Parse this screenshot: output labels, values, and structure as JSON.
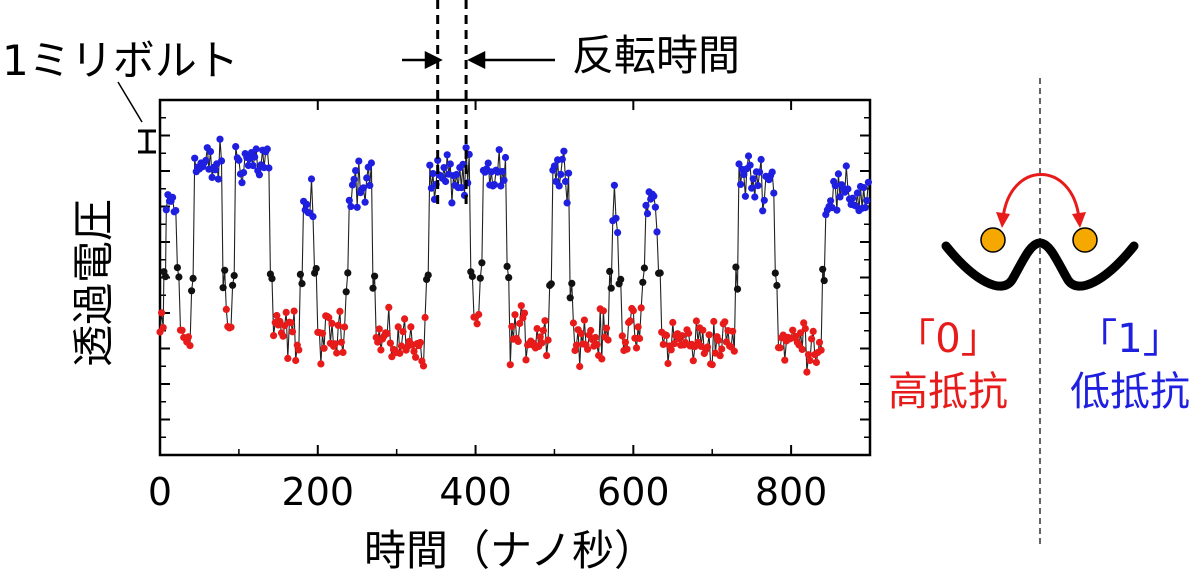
{
  "chart_data": {
    "type": "scatter",
    "xlabel": "時間（ナノ秒）",
    "ylabel": "透過電圧",
    "xlim": [
      0,
      900
    ],
    "ylim": [
      0,
      10
    ],
    "xticks": [
      0,
      200,
      400,
      600,
      800
    ],
    "xtick_labels": [
      "0",
      "200",
      "400",
      "600",
      "800"
    ],
    "y_tick_labels_shown": false,
    "grid": false,
    "scale_bar_label": "1ミリボルト",
    "reversal_label": "反転時間",
    "reversal_window": [
      352,
      388
    ],
    "state_colors": {
      "high": "#1f1fe0",
      "mid": "#111111",
      "low": "#e81b1b"
    },
    "segments": [
      {
        "x0": 0,
        "x1": 5,
        "level": "low",
        "y": 3.4
      },
      {
        "x0": 5,
        "x1": 8,
        "level": "mid",
        "y": 5.0
      },
      {
        "x0": 8,
        "x1": 22,
        "level": "high",
        "y": 7.1
      },
      {
        "x0": 22,
        "x1": 26,
        "level": "mid",
        "y": 5.0
      },
      {
        "x0": 26,
        "x1": 40,
        "level": "low",
        "y": 3.4
      },
      {
        "x0": 40,
        "x1": 44,
        "level": "mid",
        "y": 5.0
      },
      {
        "x0": 44,
        "x1": 80,
        "level": "high",
        "y": 8.1
      },
      {
        "x0": 80,
        "x1": 84,
        "level": "mid",
        "y": 5.0
      },
      {
        "x0": 84,
        "x1": 92,
        "level": "low",
        "y": 3.7
      },
      {
        "x0": 92,
        "x1": 96,
        "level": "mid",
        "y": 5.0
      },
      {
        "x0": 96,
        "x1": 140,
        "level": "high",
        "y": 8.3
      },
      {
        "x0": 140,
        "x1": 144,
        "level": "mid",
        "y": 5.0
      },
      {
        "x0": 144,
        "x1": 178,
        "level": "low",
        "y": 3.4
      },
      {
        "x0": 178,
        "x1": 182,
        "level": "mid",
        "y": 5.0
      },
      {
        "x0": 182,
        "x1": 196,
        "level": "high",
        "y": 7.0
      },
      {
        "x0": 196,
        "x1": 200,
        "level": "mid",
        "y": 5.0
      },
      {
        "x0": 200,
        "x1": 236,
        "level": "low",
        "y": 3.3
      },
      {
        "x0": 236,
        "x1": 240,
        "level": "mid",
        "y": 5.0
      },
      {
        "x0": 240,
        "x1": 270,
        "level": "high",
        "y": 7.8
      },
      {
        "x0": 270,
        "x1": 274,
        "level": "mid",
        "y": 5.0
      },
      {
        "x0": 274,
        "x1": 338,
        "level": "low",
        "y": 3.2
      },
      {
        "x0": 338,
        "x1": 342,
        "level": "mid",
        "y": 5.0
      },
      {
        "x0": 342,
        "x1": 394,
        "level": "high",
        "y": 7.8
      },
      {
        "x0": 394,
        "x1": 398,
        "level": "mid",
        "y": 5.0
      },
      {
        "x0": 398,
        "x1": 406,
        "level": "low",
        "y": 3.6
      },
      {
        "x0": 406,
        "x1": 410,
        "level": "mid",
        "y": 5.0
      },
      {
        "x0": 410,
        "x1": 440,
        "level": "high",
        "y": 7.9
      },
      {
        "x0": 440,
        "x1": 444,
        "level": "mid",
        "y": 5.0
      },
      {
        "x0": 444,
        "x1": 494,
        "level": "low",
        "y": 3.4
      },
      {
        "x0": 494,
        "x1": 498,
        "level": "mid",
        "y": 5.0
      },
      {
        "x0": 498,
        "x1": 520,
        "level": "high",
        "y": 8.0
      },
      {
        "x0": 520,
        "x1": 524,
        "level": "mid",
        "y": 5.0
      },
      {
        "x0": 524,
        "x1": 570,
        "level": "low",
        "y": 3.3
      },
      {
        "x0": 570,
        "x1": 574,
        "level": "mid",
        "y": 5.0
      },
      {
        "x0": 574,
        "x1": 582,
        "level": "high",
        "y": 7.0
      },
      {
        "x0": 582,
        "x1": 586,
        "level": "mid",
        "y": 5.0
      },
      {
        "x0": 586,
        "x1": 612,
        "level": "low",
        "y": 3.4
      },
      {
        "x0": 612,
        "x1": 616,
        "level": "mid",
        "y": 5.0
      },
      {
        "x0": 616,
        "x1": 632,
        "level": "high",
        "y": 7.1
      },
      {
        "x0": 632,
        "x1": 636,
        "level": "mid",
        "y": 5.0
      },
      {
        "x0": 636,
        "x1": 730,
        "level": "low",
        "y": 3.2
      },
      {
        "x0": 730,
        "x1": 734,
        "level": "mid",
        "y": 5.0
      },
      {
        "x0": 734,
        "x1": 780,
        "level": "high",
        "y": 7.8
      },
      {
        "x0": 780,
        "x1": 784,
        "level": "mid",
        "y": 5.0
      },
      {
        "x0": 784,
        "x1": 840,
        "level": "low",
        "y": 3.2
      },
      {
        "x0": 840,
        "x1": 844,
        "level": "mid",
        "y": 5.0
      },
      {
        "x0": 844,
        "x1": 900,
        "level": "high",
        "y": 7.3
      }
    ]
  },
  "diagram": {
    "state0_bracket": "「0」",
    "state0_text": "高抵抗",
    "state1_bracket": "「1」",
    "state1_text": "低抵抗",
    "ball_color": "#f5a800",
    "arrow_color": "#e81b1b"
  }
}
